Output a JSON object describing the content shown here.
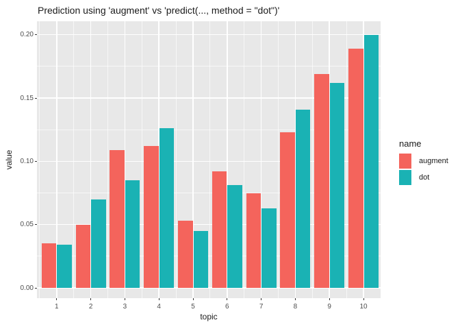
{
  "window": {
    "kind": "r-ggplot2-plot-pane"
  },
  "chart_data": {
    "type": "bar",
    "subtype": "grouped-dodged-bars",
    "title": "Prediction using 'augment' vs 'predict(..., method = \"dot\")'",
    "xlabel": "topic",
    "ylabel": "value",
    "categories": [
      "1",
      "2",
      "3",
      "4",
      "5",
      "6",
      "7",
      "8",
      "9",
      "10"
    ],
    "series": [
      {
        "name": "augment",
        "color": "#F4645C",
        "values": [
          0.035,
          0.05,
          0.109,
          0.112,
          0.053,
          0.092,
          0.075,
          0.123,
          0.169,
          0.189
        ]
      },
      {
        "name": "dot",
        "color": "#1AB2B4",
        "values": [
          0.034,
          0.07,
          0.085,
          0.126,
          0.045,
          0.081,
          0.063,
          0.141,
          0.162,
          0.2
        ]
      }
    ],
    "ylim": [
      0,
      0.21
    ],
    "yticks": [
      0.0,
      0.05,
      0.1,
      0.15,
      0.2
    ],
    "ytick_labels": [
      "0.00",
      "0.05",
      "0.10",
      "0.15",
      "0.20"
    ],
    "grid": true,
    "legend_title": "name",
    "legend_position": "right",
    "theme": "ggplot2-grey"
  },
  "colors": {
    "background": "#ffffff",
    "panel_background": "#E8E8E8",
    "grid_major": "#ffffff",
    "grid_minor": "#ffffff",
    "axis_text": "#4d4d4d",
    "axis_title": "#1a1a1a",
    "title_text": "#1a1a1a",
    "tick_mark": "#333333",
    "augment_bar": "#F4645C",
    "dot_bar": "#1AB2B4"
  }
}
